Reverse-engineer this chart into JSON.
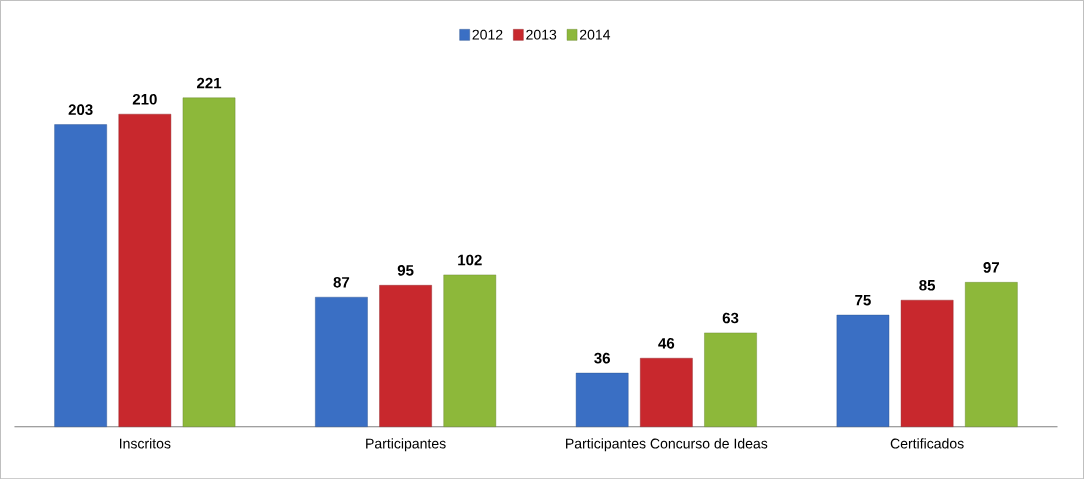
{
  "chart_data": {
    "type": "bar",
    "categories": [
      "Inscritos",
      "Participantes",
      "Participantes Concurso de Ideas",
      "Certificados"
    ],
    "series": [
      {
        "name": "2012",
        "color": "#3a6fc4",
        "values": [
          203,
          87,
          36,
          75
        ]
      },
      {
        "name": "2013",
        "color": "#c8282d",
        "values": [
          210,
          95,
          46,
          85
        ]
      },
      {
        "name": "2014",
        "color": "#8db83a",
        "values": [
          221,
          102,
          63,
          97
        ]
      }
    ],
    "data_labels": true,
    "legend": "top"
  }
}
